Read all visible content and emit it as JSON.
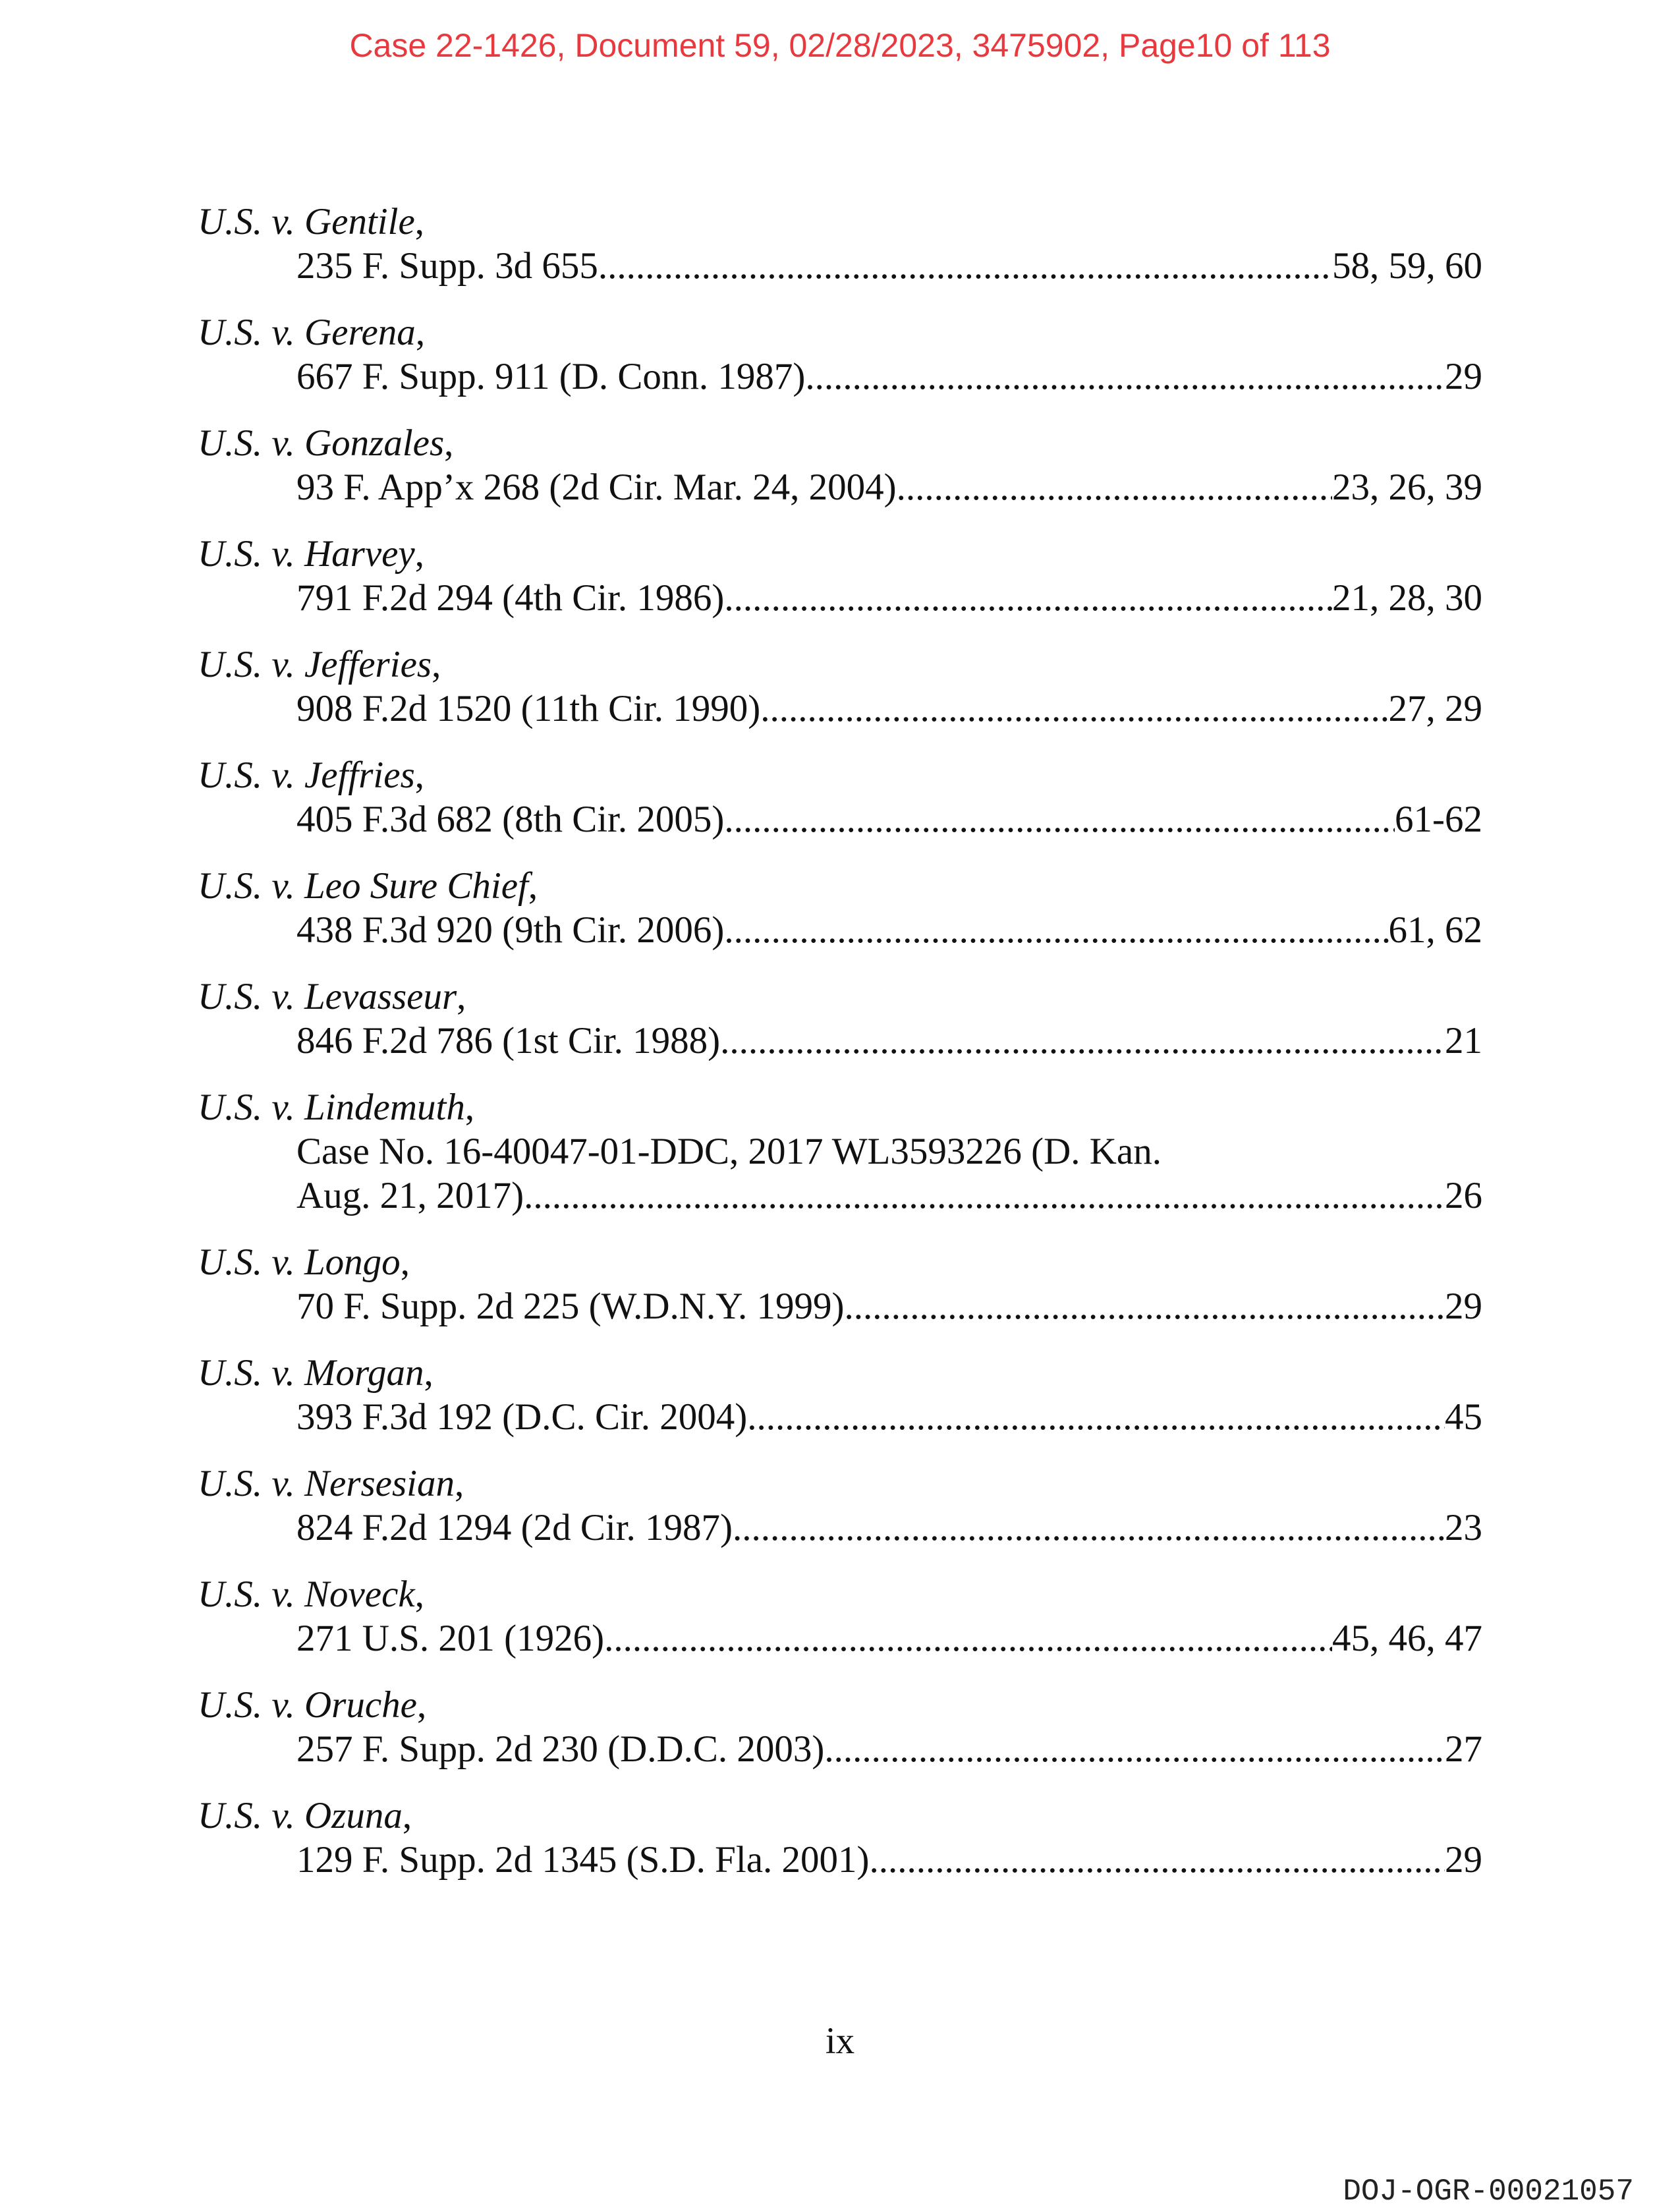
{
  "header": "Case 22-1426, Document 59, 02/28/2023, 3475902, Page10 of 113",
  "entries": [
    {
      "name": "U.S. v. Gentile",
      "lines": [],
      "cite": "235 F. Supp. 3d 655",
      "pages": "58, 59, 60"
    },
    {
      "name": "U.S. v. Gerena",
      "lines": [],
      "cite": "667 F. Supp. 911 (D. Conn. 1987) ",
      "pages": "29"
    },
    {
      "name": "U.S. v. Gonzales",
      "lines": [],
      "cite": "93 F. App’x 268 (2d Cir. Mar. 24, 2004) ",
      "pages": "23, 26, 39"
    },
    {
      "name": "U.S. v. Harvey",
      "lines": [],
      "cite": "791 F.2d 294 (4th Cir. 1986) ",
      "pages": "21, 28, 30"
    },
    {
      "name": "U.S. v. Jefferies",
      "lines": [],
      "cite": "908 F.2d 1520 (11th Cir. 1990) ",
      "pages": "27, 29"
    },
    {
      "name": "U.S. v. Jeffries",
      "lines": [],
      "cite": "405 F.3d 682 (8th Cir. 2005) ",
      "pages": " 61-62"
    },
    {
      "name": "U.S. v. Leo Sure Chief",
      "lines": [],
      "cite": "438 F.3d 920 (9th Cir. 2006) ",
      "pages": "61, 62"
    },
    {
      "name": "U.S. v. Levasseur",
      "lines": [],
      "cite": "846 F.2d 786 (1st Cir. 1988)",
      "pages": "21"
    },
    {
      "name": "U.S. v. Lindemuth",
      "lines": [
        "Case No. 16-40047-01-DDC, 2017 WL3593226 (D. Kan."
      ],
      "cite": "Aug. 21, 2017) ",
      "pages": "26"
    },
    {
      "name": "U.S. v. Longo",
      "lines": [],
      "cite": "70 F. Supp. 2d 225 (W.D.N.Y. 1999)",
      "pages": "29"
    },
    {
      "name": "U.S. v. Morgan",
      "lines": [],
      "cite": "393 F.3d 192 (D.C. Cir. 2004)",
      "pages": "45"
    },
    {
      "name": "U.S. v. Nersesian",
      "lines": [],
      "cite": "824 F.2d 1294 (2d Cir. 1987) ",
      "pages": "23"
    },
    {
      "name": "U.S. v. Noveck",
      "lines": [],
      "cite": "271 U.S. 201 (1926)",
      "pages": "45, 46, 47"
    },
    {
      "name": "U.S. v. Oruche",
      "lines": [],
      "cite": "257 F. Supp. 2d 230 (D.D.C. 2003)",
      "pages": "27"
    },
    {
      "name": "U.S. v. Ozuna",
      "lines": [],
      "cite": "129 F. Supp. 2d 1345 (S.D. Fla. 2001)",
      "pages": "29"
    }
  ],
  "page_number": "ix",
  "bates": "DOJ-OGR-00021057"
}
